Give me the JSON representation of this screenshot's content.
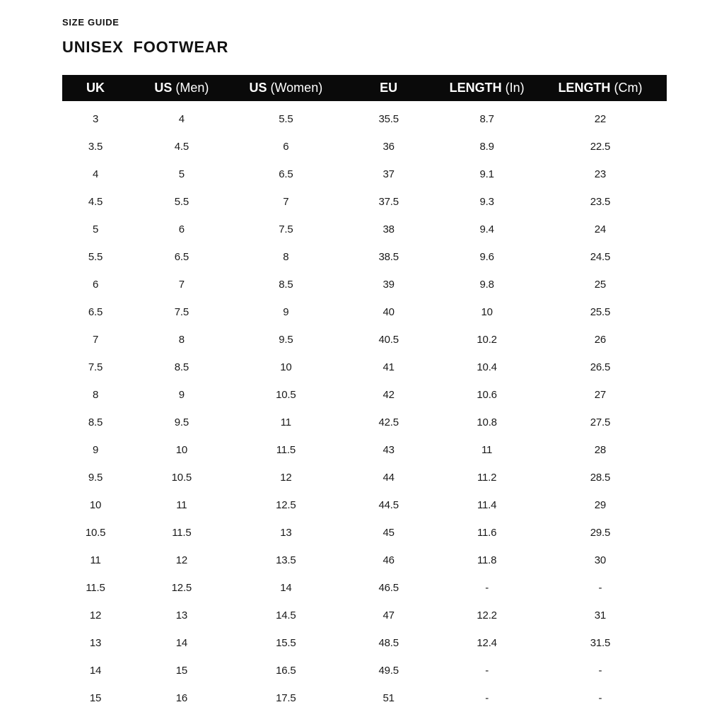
{
  "page": {
    "eyebrow": "SIZE GUIDE",
    "title": "UNISEX  FOOTWEAR"
  },
  "colors": {
    "background": "#ffffff",
    "header_bar": "#0a0a0a",
    "header_text": "#ffffff",
    "body_text": "#1a1a1a"
  },
  "table": {
    "headers": [
      {
        "bold": "UK",
        "regular": ""
      },
      {
        "bold": "US",
        "regular": "(Men)"
      },
      {
        "bold": "US",
        "regular": "(Women)"
      },
      {
        "bold": "EU",
        "regular": ""
      },
      {
        "bold": "LENGTH",
        "regular": "(In)"
      },
      {
        "bold": "LENGTH",
        "regular": "(Cm)"
      }
    ],
    "rows": [
      [
        "3",
        "4",
        "5.5",
        "35.5",
        "8.7",
        "22"
      ],
      [
        "3.5",
        "4.5",
        "6",
        "36",
        "8.9",
        "22.5"
      ],
      [
        "4",
        "5",
        "6.5",
        "37",
        "9.1",
        "23"
      ],
      [
        "4.5",
        "5.5",
        "7",
        "37.5",
        "9.3",
        "23.5"
      ],
      [
        "5",
        "6",
        "7.5",
        "38",
        "9.4",
        "24"
      ],
      [
        "5.5",
        "6.5",
        "8",
        "38.5",
        "9.6",
        "24.5"
      ],
      [
        "6",
        "7",
        "8.5",
        "39",
        "9.8",
        "25"
      ],
      [
        "6.5",
        "7.5",
        "9",
        "40",
        "10",
        "25.5"
      ],
      [
        "7",
        "8",
        "9.5",
        "40.5",
        "10.2",
        "26"
      ],
      [
        "7.5",
        "8.5",
        "10",
        "41",
        "10.4",
        "26.5"
      ],
      [
        "8",
        "9",
        "10.5",
        "42",
        "10.6",
        "27"
      ],
      [
        "8.5",
        "9.5",
        "11",
        "42.5",
        "10.8",
        "27.5"
      ],
      [
        "9",
        "10",
        "11.5",
        "43",
        "11",
        "28"
      ],
      [
        "9.5",
        "10.5",
        "12",
        "44",
        "11.2",
        "28.5"
      ],
      [
        "10",
        "11",
        "12.5",
        "44.5",
        "11.4",
        "29"
      ],
      [
        "10.5",
        "11.5",
        "13",
        "45",
        "11.6",
        "29.5"
      ],
      [
        "11",
        "12",
        "13.5",
        "46",
        "11.8",
        "30"
      ],
      [
        "11.5",
        "12.5",
        "14",
        "46.5",
        "-",
        "-"
      ],
      [
        "12",
        "13",
        "14.5",
        "47",
        "12.2",
        "31"
      ],
      [
        "13",
        "14",
        "15.5",
        "48.5",
        "12.4",
        "31.5"
      ],
      [
        "14",
        "15",
        "16.5",
        "49.5",
        "-",
        "-"
      ],
      [
        "15",
        "16",
        "17.5",
        "51",
        "-",
        "-"
      ]
    ]
  }
}
